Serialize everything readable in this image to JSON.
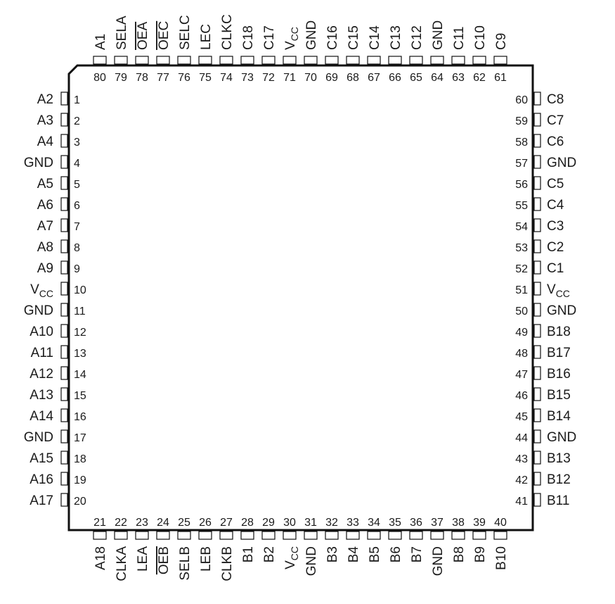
{
  "package": {
    "left_pins": [
      {
        "num": "1",
        "name": "A2"
      },
      {
        "num": "2",
        "name": "A3"
      },
      {
        "num": "3",
        "name": "A4"
      },
      {
        "num": "4",
        "name": "GND"
      },
      {
        "num": "5",
        "name": "A5"
      },
      {
        "num": "6",
        "name": "A6"
      },
      {
        "num": "7",
        "name": "A7"
      },
      {
        "num": "8",
        "name": "A8"
      },
      {
        "num": "9",
        "name": "A9"
      },
      {
        "num": "10",
        "name": "V",
        "sub": "CC"
      },
      {
        "num": "11",
        "name": "GND"
      },
      {
        "num": "12",
        "name": "A10"
      },
      {
        "num": "13",
        "name": "A11"
      },
      {
        "num": "14",
        "name": "A12"
      },
      {
        "num": "15",
        "name": "A13"
      },
      {
        "num": "16",
        "name": "A14"
      },
      {
        "num": "17",
        "name": "GND"
      },
      {
        "num": "18",
        "name": "A15"
      },
      {
        "num": "19",
        "name": "A16"
      },
      {
        "num": "20",
        "name": "A17"
      }
    ],
    "bottom_pins": [
      {
        "num": "21",
        "name": "A18"
      },
      {
        "num": "22",
        "name": "CLKA"
      },
      {
        "num": "23",
        "name": "LEA"
      },
      {
        "num": "24",
        "name": "OEB",
        "overline": true
      },
      {
        "num": "25",
        "name": "SELB"
      },
      {
        "num": "26",
        "name": "LEB"
      },
      {
        "num": "27",
        "name": "CLKB"
      },
      {
        "num": "28",
        "name": "B1"
      },
      {
        "num": "29",
        "name": "B2"
      },
      {
        "num": "30",
        "name": "V",
        "sub": "CC"
      },
      {
        "num": "31",
        "name": "GND"
      },
      {
        "num": "32",
        "name": "B3"
      },
      {
        "num": "33",
        "name": "B4"
      },
      {
        "num": "34",
        "name": "B5"
      },
      {
        "num": "35",
        "name": "B6"
      },
      {
        "num": "36",
        "name": "B7"
      },
      {
        "num": "37",
        "name": "GND"
      },
      {
        "num": "38",
        "name": "B8"
      },
      {
        "num": "39",
        "name": "B9"
      },
      {
        "num": "40",
        "name": "B10"
      }
    ],
    "right_pins": [
      {
        "num": "60",
        "name": "C8"
      },
      {
        "num": "59",
        "name": "C7"
      },
      {
        "num": "58",
        "name": "C6"
      },
      {
        "num": "57",
        "name": "GND"
      },
      {
        "num": "56",
        "name": "C5"
      },
      {
        "num": "55",
        "name": "C4"
      },
      {
        "num": "54",
        "name": "C3"
      },
      {
        "num": "53",
        "name": "C2"
      },
      {
        "num": "52",
        "name": "C1"
      },
      {
        "num": "51",
        "name": "V",
        "sub": "CC"
      },
      {
        "num": "50",
        "name": "GND"
      },
      {
        "num": "49",
        "name": "B18"
      },
      {
        "num": "48",
        "name": "B17"
      },
      {
        "num": "47",
        "name": "B16"
      },
      {
        "num": "46",
        "name": "B15"
      },
      {
        "num": "45",
        "name": "B14"
      },
      {
        "num": "44",
        "name": "GND"
      },
      {
        "num": "43",
        "name": "B13"
      },
      {
        "num": "42",
        "name": "B12"
      },
      {
        "num": "41",
        "name": "B11"
      }
    ],
    "top_pins": [
      {
        "num": "80",
        "name": "A1"
      },
      {
        "num": "79",
        "name": "SELA"
      },
      {
        "num": "78",
        "name": "OEA",
        "overline": true
      },
      {
        "num": "77",
        "name": "OEC",
        "overline": true
      },
      {
        "num": "76",
        "name": "SELC"
      },
      {
        "num": "75",
        "name": "LEC"
      },
      {
        "num": "74",
        "name": "CLKC"
      },
      {
        "num": "73",
        "name": "C18"
      },
      {
        "num": "72",
        "name": "C17"
      },
      {
        "num": "71",
        "name": "V",
        "sub": "CC"
      },
      {
        "num": "70",
        "name": "GND"
      },
      {
        "num": "69",
        "name": "C16"
      },
      {
        "num": "68",
        "name": "C15"
      },
      {
        "num": "67",
        "name": "C14"
      },
      {
        "num": "66",
        "name": "C13"
      },
      {
        "num": "65",
        "name": "C12"
      },
      {
        "num": "64",
        "name": "GND"
      },
      {
        "num": "63",
        "name": "C11"
      },
      {
        "num": "62",
        "name": "C10"
      },
      {
        "num": "61",
        "name": "C9"
      }
    ]
  }
}
